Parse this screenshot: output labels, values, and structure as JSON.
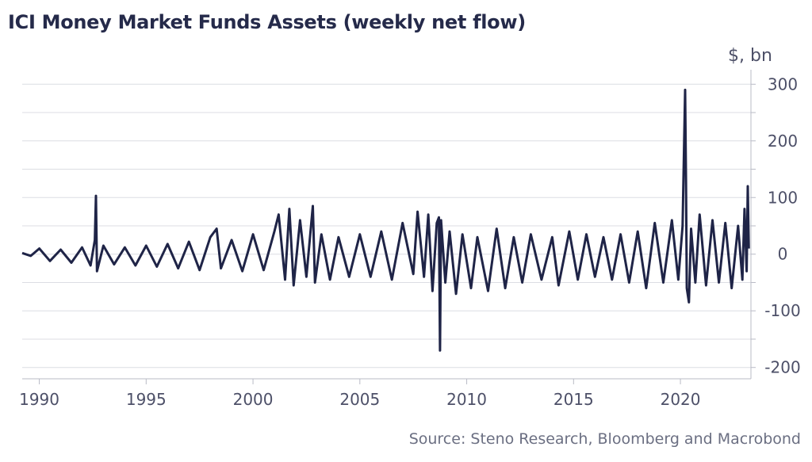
{
  "chart_data": {
    "type": "line",
    "title": "ICI Money Market Funds Assets (weekly net flow)",
    "unit": "$, bn",
    "source": "Source: Steno Research, Bloomberg and Macrobond",
    "xlim": [
      1989.2,
      2023.3
    ],
    "ylim": [
      -220,
      320
    ],
    "y_ticks": [
      300,
      200,
      100,
      0,
      -100,
      -200
    ],
    "y_tick_labels": [
      "300",
      "200",
      "100",
      "0",
      "-100",
      "-200"
    ],
    "x_ticks": [
      1990,
      1995,
      2000,
      2005,
      2010,
      2015,
      2020
    ],
    "x_tick_labels": [
      "1990",
      "1995",
      "2000",
      "2005",
      "2010",
      "2015",
      "2020"
    ],
    "grid": true,
    "y_axis_side": "right",
    "series": [
      {
        "color": "#1f2447",
        "x": [
          1989.2,
          1989.6,
          1990.0,
          1990.5,
          1991.0,
          1991.5,
          1992.0,
          1992.4,
          1992.6,
          1992.65,
          1992.7,
          1993.0,
          1993.5,
          1994.0,
          1994.5,
          1995.0,
          1995.5,
          1996.0,
          1996.5,
          1997.0,
          1997.5,
          1998.0,
          1998.3,
          1998.5,
          1999.0,
          1999.5,
          2000.0,
          2000.5,
          2001.0,
          2001.2,
          2001.5,
          2001.7,
          2001.9,
          2002.2,
          2002.5,
          2002.8,
          2002.9,
          2003.2,
          2003.6,
          2004.0,
          2004.5,
          2005.0,
          2005.5,
          2006.0,
          2006.5,
          2007.0,
          2007.5,
          2007.7,
          2008.0,
          2008.2,
          2008.4,
          2008.6,
          2008.7,
          2008.75,
          2008.8,
          2009.0,
          2009.2,
          2009.5,
          2009.8,
          2010.2,
          2010.5,
          2011.0,
          2011.4,
          2011.8,
          2012.2,
          2012.6,
          2013.0,
          2013.5,
          2014.0,
          2014.3,
          2014.8,
          2015.2,
          2015.6,
          2016.0,
          2016.4,
          2016.8,
          2017.2,
          2017.6,
          2018.0,
          2018.4,
          2018.8,
          2019.2,
          2019.6,
          2019.9,
          2020.1,
          2020.22,
          2020.26,
          2020.3,
          2020.4,
          2020.5,
          2020.7,
          2020.9,
          2021.2,
          2021.5,
          2021.8,
          2022.1,
          2022.4,
          2022.7,
          2022.9,
          2023.0,
          2023.1,
          2023.15,
          2023.2
        ],
        "y": [
          2,
          -3,
          10,
          -12,
          8,
          -15,
          12,
          -20,
          25,
          103,
          -30,
          15,
          -18,
          12,
          -20,
          15,
          -22,
          18,
          -25,
          22,
          -28,
          30,
          45,
          -25,
          25,
          -30,
          35,
          -28,
          40,
          70,
          -45,
          80,
          -55,
          60,
          -40,
          85,
          -50,
          35,
          -45,
          30,
          -40,
          35,
          -40,
          40,
          -45,
          55,
          -35,
          75,
          -40,
          70,
          -65,
          55,
          65,
          -170,
          60,
          -50,
          40,
          -70,
          35,
          -60,
          30,
          -65,
          45,
          -60,
          30,
          -50,
          35,
          -45,
          30,
          -55,
          40,
          -45,
          35,
          -40,
          30,
          -45,
          35,
          -50,
          40,
          -60,
          55,
          -50,
          60,
          -45,
          50,
          290,
          130,
          -60,
          -85,
          45,
          -50,
          70,
          -55,
          60,
          -50,
          55,
          -60,
          50,
          -45,
          80,
          -30,
          120,
          10
        ]
      }
    ]
  }
}
